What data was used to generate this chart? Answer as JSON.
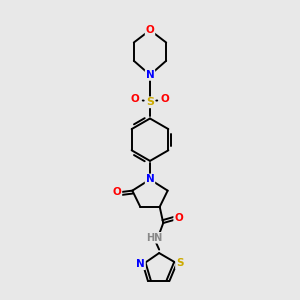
{
  "background_color": "#e8e8e8",
  "bond_color": "#000000",
  "atom_colors": {
    "O": "#ff0000",
    "N": "#0000ff",
    "S": "#ccaa00",
    "C": "#000000",
    "H": "#888888"
  }
}
